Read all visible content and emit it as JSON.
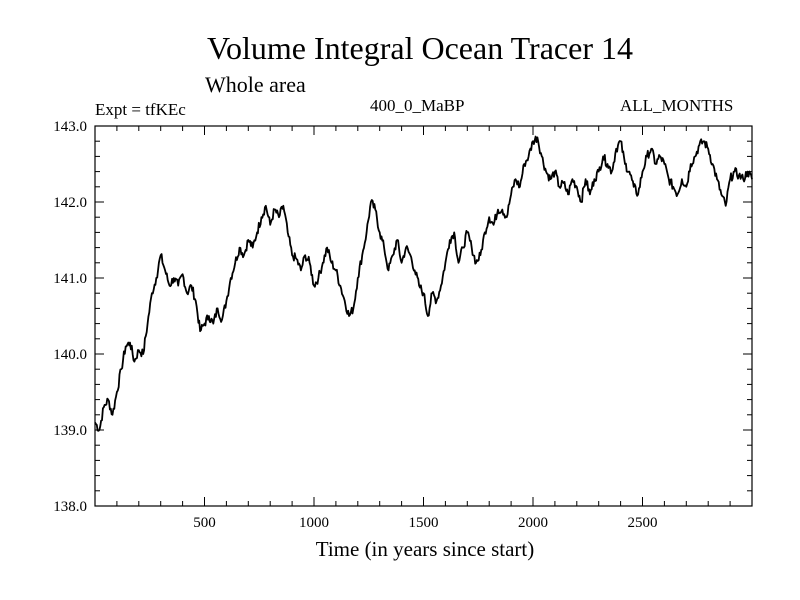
{
  "header": {
    "title": "Volume Integral Ocean Tracer 14",
    "subtitle": "Whole area",
    "expt": "Expt = tfKEc",
    "period": "400_0_MaBP",
    "months": "ALL_MONTHS"
  },
  "chart_data": {
    "type": "line",
    "title": "Volume Integral Ocean Tracer 14",
    "subtitle": "Whole area",
    "xlabel": "Time (in years since start)",
    "ylabel": "",
    "xlim": [
      0,
      3000
    ],
    "ylim": [
      138.0,
      143.0
    ],
    "xticks": [
      500,
      1000,
      1500,
      2000,
      2500
    ],
    "xtick_labels": [
      "500",
      "1000",
      "1500",
      "2000",
      "2500"
    ],
    "yticks": [
      138.0,
      139.0,
      140.0,
      141.0,
      142.0,
      143.0
    ],
    "ytick_labels": [
      "138.0",
      "139.0",
      "140.0",
      "141.0",
      "142.0",
      "143.0"
    ],
    "grid": false,
    "legend": "none",
    "line_color": "#000000",
    "series": [
      {
        "x": [
          0,
          20,
          40,
          60,
          80,
          100,
          120,
          140,
          160,
          180,
          200,
          220,
          240,
          260,
          280,
          300,
          320,
          340,
          360,
          380,
          400,
          420,
          440,
          460,
          480,
          500,
          520,
          540,
          560,
          580,
          600,
          620,
          640,
          660,
          680,
          700,
          720,
          740,
          760,
          780,
          800,
          820,
          840,
          860,
          880,
          900,
          920,
          940,
          960,
          980,
          1000,
          1020,
          1040,
          1060,
          1080,
          1100,
          1120,
          1140,
          1160,
          1180,
          1200,
          1220,
          1240,
          1260,
          1280,
          1300,
          1320,
          1340,
          1360,
          1380,
          1400,
          1420,
          1440,
          1460,
          1480,
          1500,
          1520,
          1540,
          1560,
          1580,
          1600,
          1620,
          1640,
          1660,
          1680,
          1700,
          1720,
          1740,
          1760,
          1780,
          1800,
          1820,
          1840,
          1860,
          1880,
          1900,
          1920,
          1940,
          1960,
          1980,
          2000,
          2020,
          2040,
          2060,
          2080,
          2100,
          2120,
          2140,
          2160,
          2180,
          2200,
          2220,
          2240,
          2260,
          2280,
          2300,
          2320,
          2340,
          2360,
          2380,
          2400,
          2420,
          2440,
          2460,
          2480,
          2500,
          2520,
          2540,
          2560,
          2580,
          2600,
          2620,
          2640,
          2660,
          2680,
          2700,
          2720,
          2740,
          2760,
          2780,
          2800,
          2820,
          2840,
          2860,
          2880,
          2900,
          2920,
          2940,
          2960,
          2980,
          3000
        ],
        "values": [
          139.1,
          139.0,
          139.3,
          139.4,
          139.2,
          139.5,
          139.8,
          140.1,
          140.15,
          139.9,
          140.05,
          140.0,
          140.4,
          140.8,
          141.0,
          141.3,
          141.1,
          140.9,
          141.0,
          140.9,
          141.05,
          140.8,
          140.9,
          140.7,
          140.3,
          140.4,
          140.5,
          140.4,
          140.6,
          140.45,
          140.7,
          141.0,
          141.2,
          141.4,
          141.3,
          141.5,
          141.4,
          141.6,
          141.8,
          141.95,
          141.7,
          141.9,
          141.8,
          141.95,
          141.6,
          141.3,
          141.25,
          141.1,
          141.3,
          141.2,
          140.9,
          141.0,
          141.2,
          141.4,
          141.2,
          141.1,
          140.9,
          140.7,
          140.5,
          140.6,
          141.0,
          141.3,
          141.6,
          142.0,
          141.9,
          141.6,
          141.4,
          141.1,
          141.3,
          141.5,
          141.2,
          141.4,
          141.3,
          141.1,
          140.9,
          140.8,
          140.5,
          140.8,
          140.7,
          140.9,
          141.2,
          141.5,
          141.6,
          141.2,
          141.4,
          141.6,
          141.4,
          141.2,
          141.3,
          141.6,
          141.8,
          141.7,
          141.9,
          141.9,
          141.8,
          142.1,
          142.3,
          142.2,
          142.5,
          142.6,
          142.8,
          142.85,
          142.6,
          142.4,
          142.3,
          142.4,
          142.2,
          142.25,
          142.1,
          142.3,
          142.2,
          142.0,
          142.3,
          142.1,
          142.3,
          142.4,
          142.6,
          142.5,
          142.4,
          142.7,
          142.8,
          142.5,
          142.4,
          142.2,
          142.1,
          142.4,
          142.6,
          142.7,
          142.5,
          142.6,
          142.5,
          142.3,
          142.2,
          142.1,
          142.3,
          142.2,
          142.5,
          142.6,
          142.75,
          142.8,
          142.7,
          142.5,
          142.3,
          142.1,
          141.95,
          142.3,
          142.4,
          142.35,
          142.3,
          142.4,
          142.3
        ]
      }
    ]
  }
}
